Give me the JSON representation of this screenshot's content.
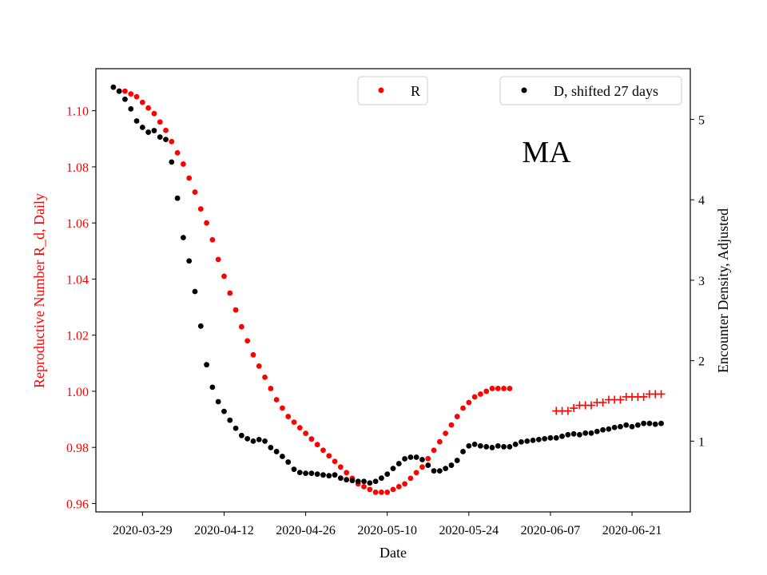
{
  "chart_data": {
    "type": "scatter",
    "annotation": "MA",
    "xlabel": "Date",
    "ylabel_left": "Reproductive Number R_d, Daily",
    "ylabel_right": "Encounter Density, Adjusted",
    "x_range": [
      "2020-03-21",
      "2020-07-01"
    ],
    "x_ticks": [
      "2020-03-29",
      "2020-04-12",
      "2020-04-26",
      "2020-05-10",
      "2020-05-24",
      "2020-06-07",
      "2020-06-21"
    ],
    "ylim_left": [
      0.957,
      1.115
    ],
    "yticks_left": [
      "0.96",
      "0.98",
      "1.00",
      "1.02",
      "1.04",
      "1.06",
      "1.08",
      "1.10"
    ],
    "ylim_right": [
      0.12,
      5.63
    ],
    "yticks_right": [
      "1",
      "2",
      "3",
      "4",
      "5"
    ],
    "legend": [
      {
        "label": "R",
        "color": "#ff0000",
        "position": "upper-center"
      },
      {
        "label": "D, shifted 27 days",
        "color": "#000000",
        "position": "upper-right"
      }
    ],
    "colors": {
      "R": "#ff0000",
      "D": "#000000",
      "axis_left": "#ff0000"
    },
    "series": [
      {
        "name": "R",
        "axis": "left",
        "marker": "dot",
        "start_date": "2020-03-25",
        "values": [
          1.107,
          1.107,
          1.106,
          1.105,
          1.103,
          1.101,
          1.099,
          1.096,
          1.093,
          1.089,
          1.085,
          1.081,
          1.076,
          1.071,
          1.065,
          1.06,
          1.054,
          1.047,
          1.041,
          1.035,
          1.029,
          1.023,
          1.018,
          1.013,
          1.009,
          1.005,
          1.001,
          0.997,
          0.994,
          0.991,
          0.989,
          0.987,
          0.985,
          0.983,
          0.981,
          0.979,
          0.977,
          0.975,
          0.973,
          0.971,
          0.969,
          0.967,
          0.966,
          0.965,
          0.964,
          0.964,
          0.964,
          0.965,
          0.966,
          0.967,
          0.969,
          0.971,
          0.973,
          0.976,
          0.979,
          0.982,
          0.985,
          0.988,
          0.991,
          0.994,
          0.996,
          0.998,
          0.999,
          1.0,
          1.001,
          1.001,
          1.001,
          1.001
        ]
      },
      {
        "name": "R (projected)",
        "axis": "left",
        "marker": "plus",
        "start_date": "2020-06-08",
        "values": [
          0.993,
          0.993,
          0.993,
          0.994,
          0.995,
          0.995,
          0.995,
          0.996,
          0.996,
          0.997,
          0.997,
          0.997,
          0.998,
          0.998,
          0.998,
          0.998,
          0.999,
          0.999,
          0.999
        ]
      },
      {
        "name": "D, shifted 27 days",
        "axis": "right",
        "marker": "dot",
        "start_date": "2020-03-24",
        "values": [
          5.4,
          5.35,
          5.25,
          5.13,
          4.98,
          4.9,
          4.84,
          4.86,
          4.78,
          4.75,
          4.47,
          4.02,
          3.53,
          3.24,
          2.86,
          2.43,
          1.95,
          1.67,
          1.49,
          1.37,
          1.26,
          1.16,
          1.07,
          1.03,
          1.0,
          1.02,
          1.0,
          0.92,
          0.87,
          0.81,
          0.74,
          0.65,
          0.61,
          0.6,
          0.6,
          0.59,
          0.58,
          0.57,
          0.58,
          0.54,
          0.52,
          0.51,
          0.5,
          0.5,
          0.48,
          0.5,
          0.54,
          0.59,
          0.66,
          0.72,
          0.78,
          0.8,
          0.8,
          0.77,
          0.7,
          0.63,
          0.63,
          0.66,
          0.7,
          0.76,
          0.87,
          0.94,
          0.96,
          0.94,
          0.93,
          0.92,
          0.94,
          0.93,
          0.93,
          0.96,
          0.99,
          1.0,
          1.01,
          1.02,
          1.03,
          1.04,
          1.04,
          1.06,
          1.08,
          1.09,
          1.08,
          1.1,
          1.1,
          1.12,
          1.14,
          1.15,
          1.17,
          1.18,
          1.2,
          1.18,
          1.2,
          1.22,
          1.22,
          1.21,
          1.22
        ]
      }
    ]
  }
}
